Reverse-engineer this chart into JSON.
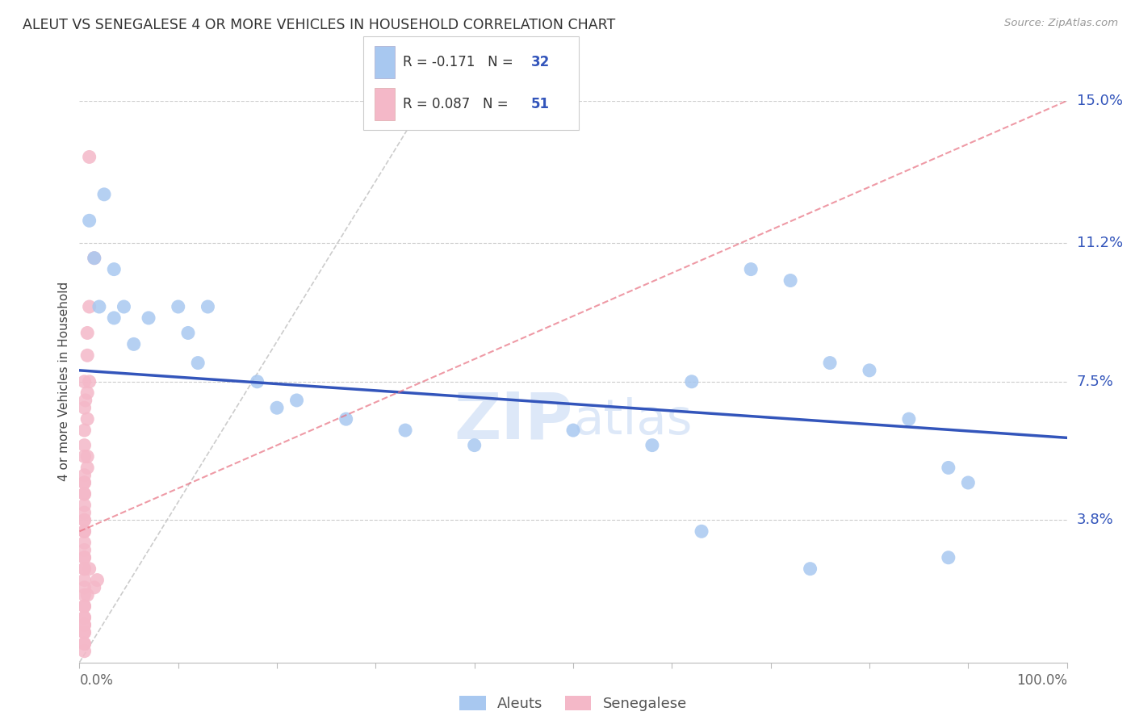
{
  "title": "ALEUT VS SENEGALESE 4 OR MORE VEHICLES IN HOUSEHOLD CORRELATION CHART",
  "source": "Source: ZipAtlas.com",
  "ylabel": "4 or more Vehicles in Household",
  "ytick_labels": [
    "15.0%",
    "11.2%",
    "7.5%",
    "3.8%"
  ],
  "ytick_values": [
    15.0,
    11.2,
    7.5,
    3.8
  ],
  "xlim": [
    0.0,
    100.0
  ],
  "ylim": [
    0.0,
    15.0
  ],
  "aleut_color": "#a8c8f0",
  "senegalese_color": "#f4b8c8",
  "aleut_line_color": "#3355bb",
  "senegalese_line_color": "#e87080",
  "diagonal_color": "#cccccc",
  "watermark_zip": "ZIP",
  "watermark_atlas": "atlas",
  "legend_aleut_R": "-0.171",
  "legend_aleut_N": "32",
  "legend_senegalese_R": "0.087",
  "legend_senegalese_N": "51",
  "aleut_line_y0": 7.8,
  "aleut_line_y100": 6.0,
  "sene_line_x0": 0.0,
  "sene_line_y0": 3.5,
  "sene_line_x1": 100.0,
  "sene_line_y1": 15.0,
  "aleut_x": [
    1.0,
    2.5,
    3.5,
    1.5,
    2.0,
    3.5,
    4.5,
    5.5,
    7.0,
    10.0,
    11.0,
    12.0,
    13.0,
    18.0,
    20.0,
    22.0,
    27.0,
    33.0,
    40.0,
    50.0,
    58.0,
    62.0,
    68.0,
    72.0,
    76.0,
    80.0,
    84.0,
    88.0,
    90.0,
    63.0,
    74.0,
    88.0
  ],
  "aleut_y": [
    11.8,
    12.5,
    10.5,
    10.8,
    9.5,
    9.2,
    9.5,
    8.5,
    9.2,
    9.5,
    8.8,
    8.0,
    9.5,
    7.5,
    6.8,
    7.0,
    6.5,
    6.2,
    5.8,
    6.2,
    5.8,
    7.5,
    10.5,
    10.2,
    8.0,
    7.8,
    6.5,
    5.2,
    4.8,
    3.5,
    2.5,
    2.8
  ],
  "senegalese_x": [
    1.0,
    1.5,
    1.0,
    0.8,
    0.8,
    0.5,
    1.0,
    0.8,
    0.6,
    0.5,
    0.8,
    0.5,
    0.5,
    0.5,
    0.8,
    0.8,
    0.5,
    0.5,
    0.5,
    0.5,
    0.5,
    0.5,
    0.5,
    0.5,
    0.5,
    0.5,
    0.5,
    0.5,
    0.5,
    0.5,
    1.0,
    1.8,
    1.5,
    0.8,
    0.5,
    0.5,
    0.5,
    0.5,
    0.5,
    0.5,
    0.5,
    0.5,
    0.5,
    0.5,
    0.5,
    0.5,
    0.5,
    0.5,
    0.5,
    0.5,
    0.5
  ],
  "senegalese_y": [
    13.5,
    10.8,
    9.5,
    8.8,
    8.2,
    7.5,
    7.5,
    7.2,
    7.0,
    6.8,
    6.5,
    6.2,
    5.8,
    5.5,
    5.2,
    5.5,
    5.0,
    4.8,
    4.8,
    4.5,
    4.5,
    4.2,
    4.0,
    3.8,
    3.8,
    3.5,
    3.2,
    3.0,
    2.8,
    2.5,
    2.5,
    2.2,
    2.0,
    1.8,
    1.5,
    1.2,
    1.0,
    0.8,
    0.5,
    3.5,
    2.8,
    2.5,
    2.2,
    2.0,
    1.8,
    1.5,
    1.2,
    1.0,
    0.8,
    0.5,
    0.3
  ]
}
